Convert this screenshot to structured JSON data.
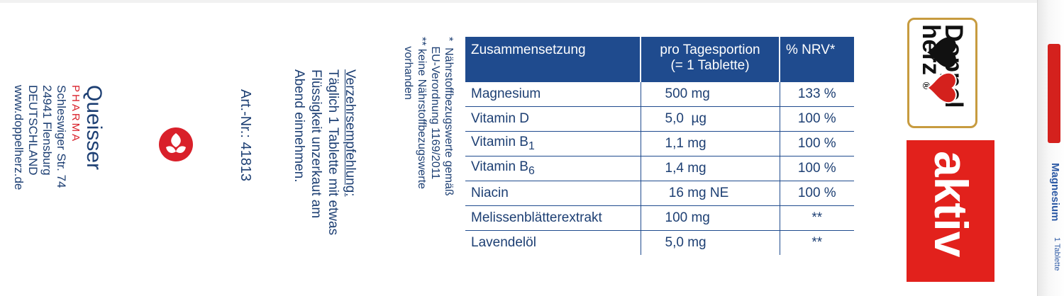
{
  "brand": {
    "logo_line1": "Doppel",
    "logo_line2": "herz",
    "registered": "®",
    "product_line": "aktiv"
  },
  "side_panel": {
    "product_name": "Magnesium",
    "subtitle": "1 Tablette"
  },
  "manufacturer": {
    "name": "Queisser",
    "division": "PHARMA",
    "street": "Schleswiger Str. 74",
    "city": "24941 Flensburg",
    "country": "DEUTSCHLAND",
    "website": "www.doppelherz.de"
  },
  "article": {
    "number_text": "Art.-Nr.: 41813"
  },
  "dosage": {
    "heading": "Verzehrsempfehlung:",
    "line1": "Täglich 1 Tablette mit etwas",
    "line2": "Flüssigkeit unzerkaut am",
    "line3": "Abend einnehmen."
  },
  "footnotes": {
    "l1": "*  Nährstoffbezugswerte gemäß",
    "l2": "   EU-Verordnung 1169/2011",
    "l3": "** keine Nährstoffbezugswerte",
    "l4": "   vorhanden"
  },
  "table": {
    "headers": {
      "composition": "Zusammensetzung",
      "per_serving_1": "pro Tagesportion",
      "per_serving_2": "(= 1 Tablette)",
      "nrv": "% NRV*"
    },
    "rows": [
      {
        "name": "Magnesium",
        "sub": "",
        "amount": "500 mg",
        "nrv": "133 %"
      },
      {
        "name": "Vitamin D",
        "sub": "",
        "amount": "5,0  µg",
        "nrv": "100 %"
      },
      {
        "name": "Vitamin B",
        "sub": "1",
        "amount": "1,1 mg",
        "nrv": "100 %"
      },
      {
        "name": "Vitamin B",
        "sub": "6",
        "amount": "1,4 mg",
        "nrv": "100 %"
      },
      {
        "name": "Niacin",
        "sub": "",
        "amount": " 16 mg NE",
        "nrv": "100 %"
      },
      {
        "name": "Melissenblätterextrakt",
        "sub": "",
        "amount": "100 mg",
        "nrv": "**"
      },
      {
        "name": "Lavendelöl",
        "sub": "",
        "amount": "5,0 mg",
        "nrv": "**"
      }
    ]
  },
  "colors": {
    "text_blue": "#1d3f73",
    "header_blue": "#1f4b8e",
    "brand_red": "#e2211c",
    "logo_gold": "#c79b3f"
  }
}
